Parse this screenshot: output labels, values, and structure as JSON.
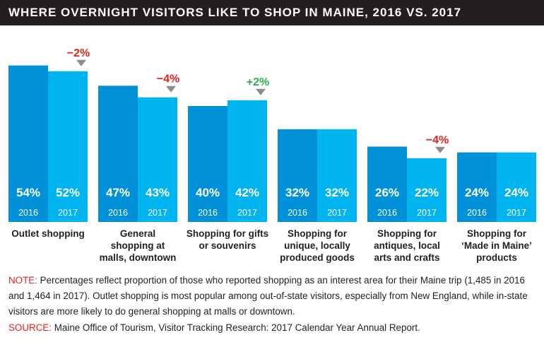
{
  "header": {
    "title": "WHERE OVERNIGHT VISITORS LIKE TO SHOP IN MAINE, 2016 VS. 2017"
  },
  "colors": {
    "y2016": "#0091d8",
    "y2017": "#00b4f0",
    "negative": "#e2231a",
    "positive": "#2ab04a",
    "marker": "#8c8c8c",
    "header_bg": "#231f20"
  },
  "chart_data": {
    "type": "bar",
    "title": "WHERE OVERNIGHT VISITORS LIKE TO SHOP IN MAINE, 2016 VS. 2017",
    "categories": [
      [
        "Outlet shopping"
      ],
      [
        "General",
        "shopping at",
        "malls, downtown"
      ],
      [
        "Shopping for gifts",
        "or souvenirs"
      ],
      [
        "Shopping for",
        "unique, locally",
        "produced goods"
      ],
      [
        "Shopping for",
        "antiques, local",
        "arts and crafts"
      ],
      [
        "Shopping for",
        "‘Made in Maine’",
        "products"
      ]
    ],
    "series": [
      {
        "name": "2016",
        "values": [
          54,
          47,
          40,
          32,
          26,
          24
        ],
        "labels": [
          "54%",
          "47%",
          "40%",
          "32%",
          "26%",
          "24%"
        ]
      },
      {
        "name": "2017",
        "values": [
          52,
          43,
          42,
          32,
          22,
          24
        ],
        "labels": [
          "52%",
          "43%",
          "42%",
          "32%",
          "22%",
          "24%"
        ]
      }
    ],
    "changes": [
      "−2%",
      "−4%",
      "+2%",
      "",
      "−4%",
      ""
    ],
    "ylim": [
      0,
      60
    ],
    "grid": false,
    "legend": "none"
  },
  "note": {
    "label": "NOTE:",
    "text": " Percentages reflect proportion of those who reported shopping as an interest area for their Maine trip (1,485 in 2016 and 1,464 in 2017). Outlet shopping is most popular among out-of-state visitors, especially from New England, while in-state visitors are more likely to do general shopping at malls or downtown."
  },
  "source": {
    "label": "SOURCE:",
    "text": " Maine Office of Tourism, Visitor Tracking Research: 2017 Calendar Year Annual Report."
  }
}
